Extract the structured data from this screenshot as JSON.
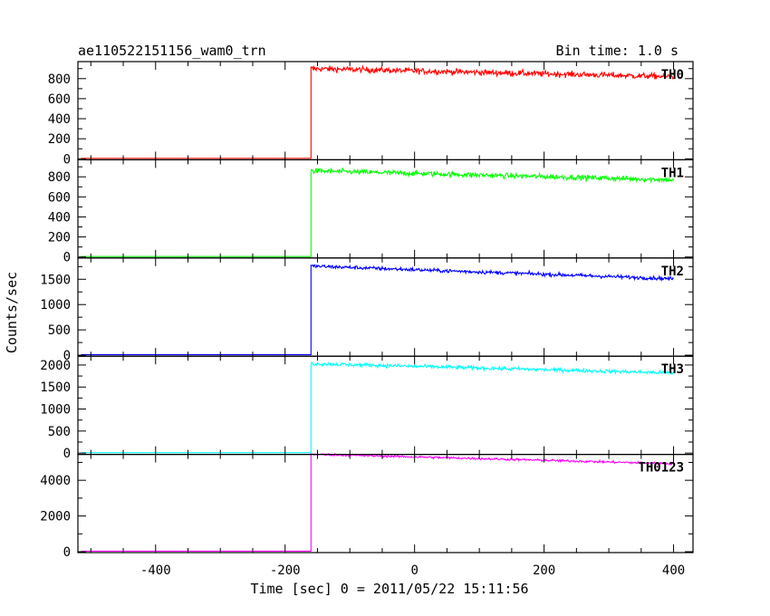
{
  "header": {
    "title": "ae110522151156_wam0_trn",
    "bin_time": "Bin time: 1.0 s"
  },
  "axes": {
    "xlabel": "Time [sec] 0 = 2011/05/22 15:11:56",
    "ylabel": "Counts/sec"
  },
  "chart_data": {
    "type": "line",
    "xlim": [
      -520,
      430
    ],
    "x_ticks": [
      -400,
      -200,
      0,
      200,
      400
    ],
    "onset_time": -160,
    "end_time": 400,
    "panels": [
      {
        "name": "TH0",
        "color": "#ff0000",
        "ylim": [
          -10,
          970
        ],
        "y_ticks": [
          0,
          200,
          400,
          600,
          800
        ],
        "pre_level": 5,
        "post_start": 900,
        "post_end": 820,
        "noise": 28
      },
      {
        "name": "TH1",
        "color": "#00ff00",
        "ylim": [
          -10,
          970
        ],
        "y_ticks": [
          0,
          200,
          400,
          600,
          800
        ],
        "pre_level": 5,
        "post_start": 860,
        "post_end": 770,
        "noise": 25
      },
      {
        "name": "TH2",
        "color": "#0000ff",
        "ylim": [
          -20,
          1920
        ],
        "y_ticks": [
          0,
          500,
          1000,
          1500
        ],
        "pre_level": 10,
        "post_start": 1760,
        "post_end": 1510,
        "noise": 35
      },
      {
        "name": "TH3",
        "color": "#00ffff",
        "ylim": [
          -30,
          2200
        ],
        "y_ticks": [
          0,
          500,
          1000,
          1500,
          2000
        ],
        "pre_level": 10,
        "post_start": 2030,
        "post_end": 1820,
        "noise": 40
      },
      {
        "name": "TH0123",
        "color": "#ff00ff",
        "ylim": [
          -50,
          5450
        ],
        "y_ticks": [
          0,
          2000,
          4000
        ],
        "pre_level": 30,
        "post_start": 5460,
        "post_end": 4930,
        "noise": 60
      }
    ]
  }
}
